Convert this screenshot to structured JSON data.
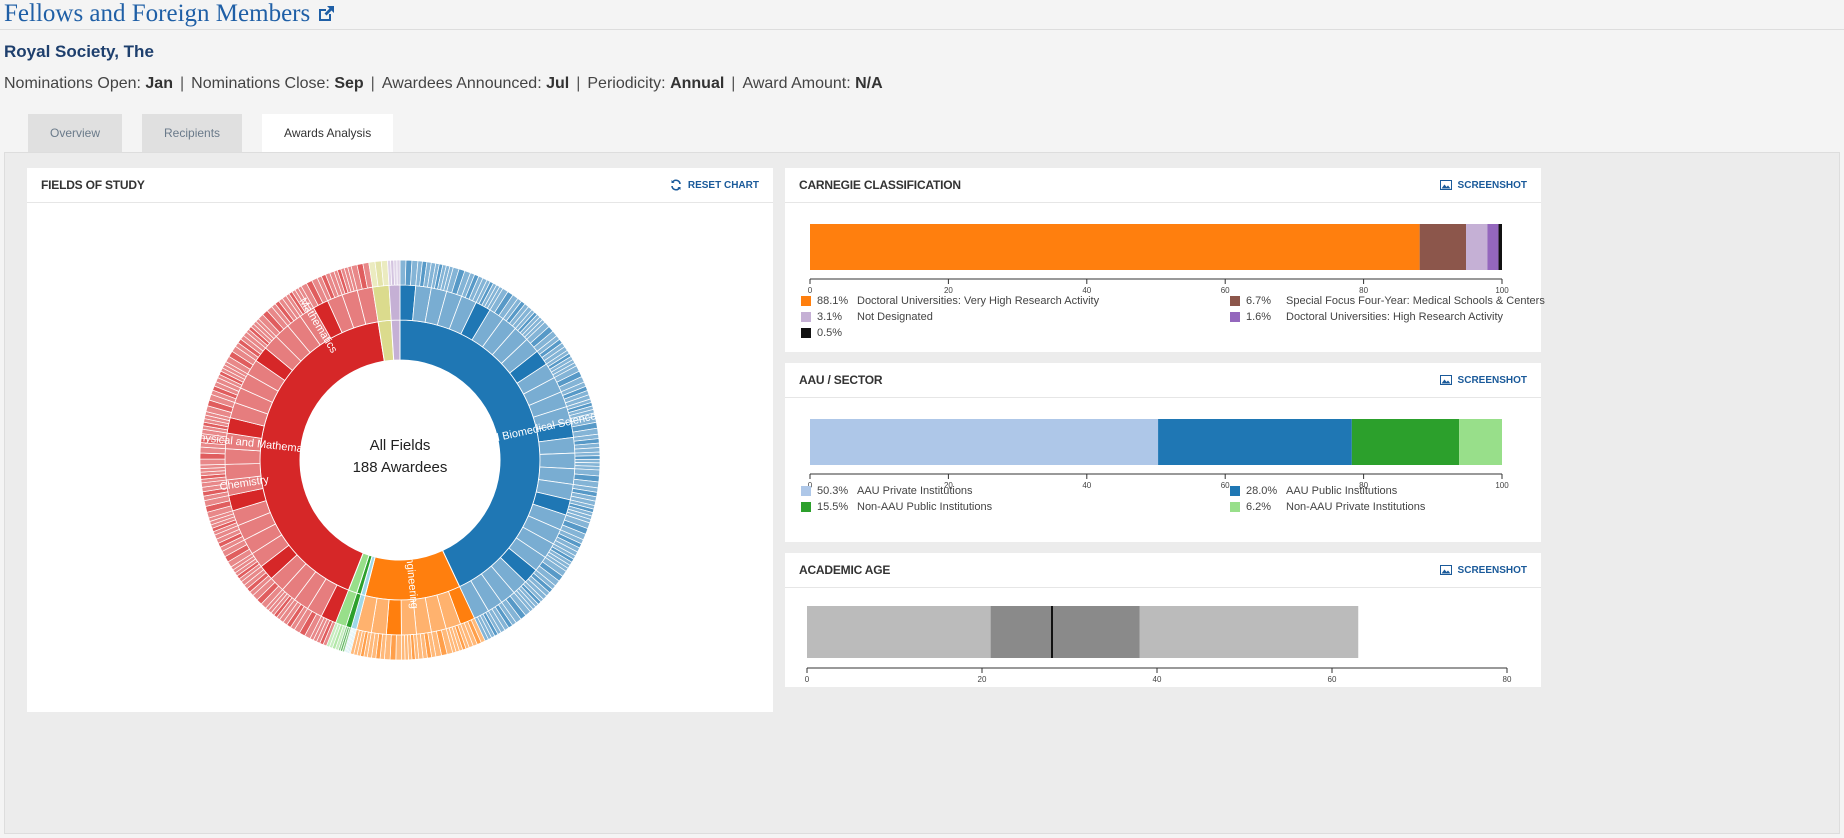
{
  "header": {
    "title": "Fellows and Foreign Members",
    "organization": "Royal Society, The",
    "meta": [
      {
        "label": "Nominations Open:",
        "value": "Jan"
      },
      {
        "label": "Nominations Close:",
        "value": "Sep"
      },
      {
        "label": "Awardees Announced:",
        "value": "Jul"
      },
      {
        "label": "Periodicity:",
        "value": "Annual"
      },
      {
        "label": "Award Amount:",
        "value": "N/A"
      }
    ],
    "separator": "|"
  },
  "tabs": [
    {
      "label": "Overview",
      "active": false
    },
    {
      "label": "Recipients",
      "active": false
    },
    {
      "label": "Awards Analysis",
      "active": true
    }
  ],
  "fields_panel": {
    "title": "FIELDS OF STUDY",
    "action": "RESET CHART",
    "center_line1": "All Fields",
    "center_line2": "188 Awardees"
  },
  "carnegie_panel": {
    "title": "CARNEGIE CLASSIFICATION",
    "action": "SCREENSHOT"
  },
  "aau_panel": {
    "title": "AAU / SECTOR",
    "action": "SCREENSHOT"
  },
  "age_panel": {
    "title": "ACADEMIC AGE",
    "action": "SCREENSHOT"
  },
  "chart_data": [
    {
      "type": "sunburst",
      "total": 188,
      "inner": [
        {
          "name": "Biological and Biomedical Sciences",
          "share": 0.43,
          "color": "#1f77b4"
        },
        {
          "name": "Engineering",
          "share": 0.11,
          "color": "#ff7f0e"
        },
        {
          "name": "",
          "share": 0.005,
          "color": "#9fd8e8"
        },
        {
          "name": "",
          "share": 0.005,
          "color": "#2ca02c"
        },
        {
          "name": "",
          "share": 0.01,
          "color": "#98df8a"
        },
        {
          "name": "Physical and Mathematical Sciences",
          "share": 0.415,
          "color": "#d62728"
        },
        {
          "name": "",
          "share": 0.015,
          "color": "#dbdb8d"
        },
        {
          "name": "",
          "share": 0.01,
          "color": "#c5b0d5"
        }
      ],
      "middle": [
        {
          "name": "",
          "share": 0.15,
          "color": "#1f77b4"
        },
        {
          "name": "Chemistry",
          "share": 0.14,
          "color": "#d62728"
        },
        {
          "name": "Mathematics",
          "share": 0.14,
          "color": "#f29a9a"
        }
      ]
    },
    {
      "type": "bar",
      "orientation": "horizontal-stacked",
      "xlim": [
        0,
        100
      ],
      "ticks": [
        0,
        20,
        40,
        60,
        80,
        100
      ],
      "series": [
        {
          "name": "Doctoral Universities: Very High Research Activity",
          "value": 88.1,
          "label": "88.1%",
          "color": "#ff7f0e"
        },
        {
          "name": "Special Focus Four-Year: Medical Schools & Centers",
          "value": 6.7,
          "label": "6.7%",
          "color": "#8c564b"
        },
        {
          "name": "Not Designated",
          "value": 3.1,
          "label": "3.1%",
          "color": "#c5b0d5"
        },
        {
          "name": "Doctoral Universities: High Research Activity",
          "value": 1.6,
          "label": "1.6%",
          "color": "#9467bd"
        },
        {
          "name": "",
          "value": 0.5,
          "label": "0.5%",
          "color": "#111111"
        }
      ]
    },
    {
      "type": "bar",
      "orientation": "horizontal-stacked",
      "xlim": [
        0,
        100
      ],
      "ticks": [
        0,
        20,
        40,
        60,
        80,
        100
      ],
      "series": [
        {
          "name": "AAU Private Institutions",
          "value": 50.3,
          "label": "50.3%",
          "color": "#aec7e8"
        },
        {
          "name": "AAU Public Institutions",
          "value": 28.0,
          "label": "28.0%",
          "color": "#1f77b4"
        },
        {
          "name": "Non-AAU Public Institutions",
          "value": 15.5,
          "label": "15.5%",
          "color": "#2ca02c"
        },
        {
          "name": "Non-AAU Private Institutions",
          "value": 6.2,
          "label": "6.2%",
          "color": "#98df8a"
        }
      ]
    },
    {
      "type": "box",
      "xlim": [
        0,
        80
      ],
      "ticks": [
        0,
        20,
        40,
        60,
        80
      ],
      "min": 0,
      "q1": 21,
      "median": 28,
      "q3": 38,
      "max": 63,
      "outer_color": "#bbbbbb",
      "inner_color": "#8a8a8a"
    }
  ]
}
